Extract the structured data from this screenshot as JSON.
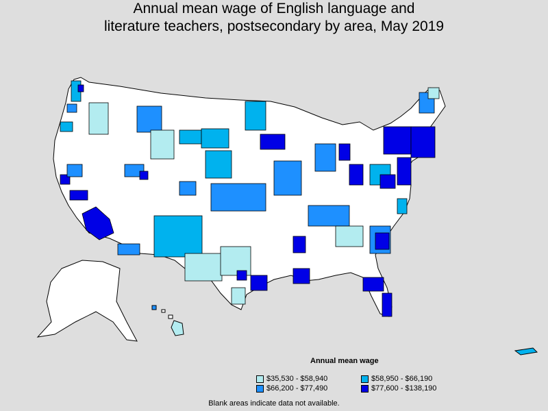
{
  "title_line1": "Annual mean wage of English language and",
  "title_line2": "literature teachers, postsecondary by area, May 2019",
  "legend": {
    "title": "Annual mean wage",
    "items": [
      {
        "label": "$35,530 - $58,940",
        "color": "#b3ecf0"
      },
      {
        "label": "$58,950 - $66,190",
        "color": "#00b2ee"
      },
      {
        "label": "$66,200 - $77,490",
        "color": "#1e90ff"
      },
      {
        "label": "$77,600 - $138,190",
        "color": "#0000e6"
      }
    ]
  },
  "colors": {
    "background": "#dedede",
    "land": "#ffffff",
    "border": "#000000"
  },
  "footnote": "Blank areas indicate data not available."
}
